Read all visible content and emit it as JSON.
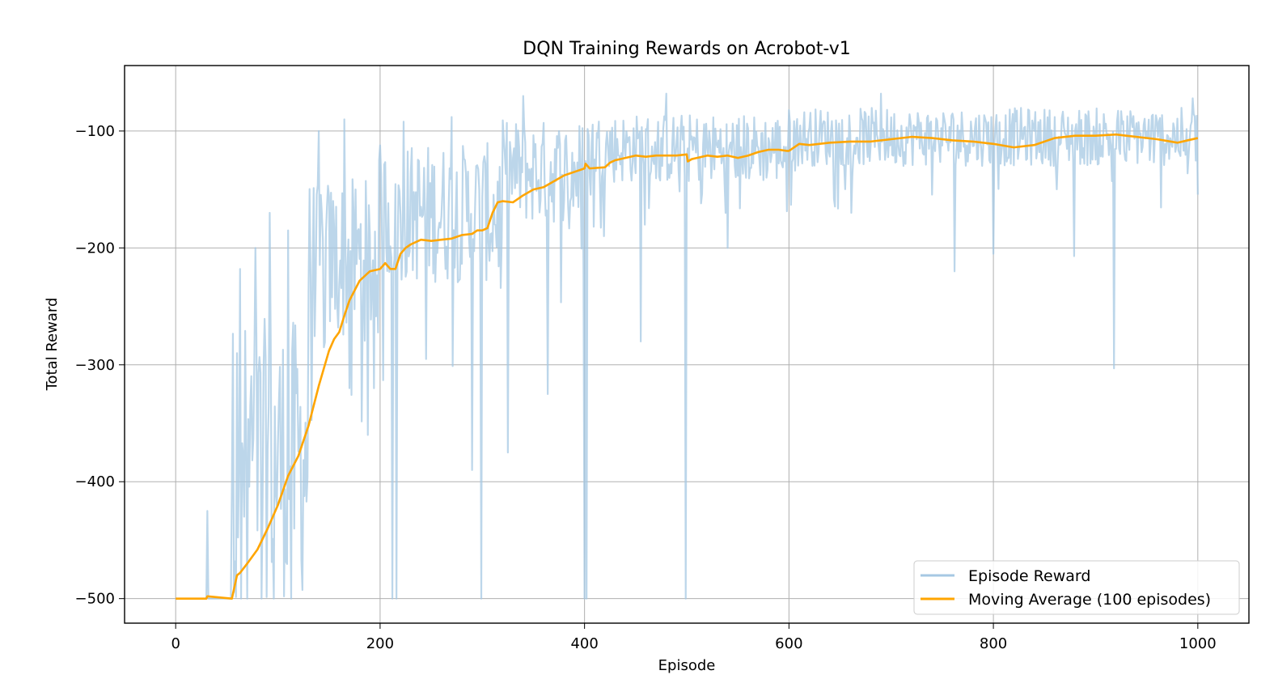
{
  "chart_data": {
    "type": "line",
    "title": "DQN Training Rewards on Acrobot-v1",
    "xlabel": "Episode",
    "ylabel": "Total Reward",
    "xlim": [
      -50,
      1050
    ],
    "ylim": [
      -521,
      -44
    ],
    "x_ticks": [
      0,
      200,
      400,
      600,
      800,
      1000
    ],
    "y_ticks": [
      -500,
      -400,
      -300,
      -200,
      -100
    ],
    "x_tick_labels": [
      "0",
      "200",
      "400",
      "600",
      "800",
      "1000"
    ],
    "y_tick_labels": [
      "−500",
      "−400",
      "−300",
      "−200",
      "−100"
    ],
    "grid": true,
    "legend_position": "lower-right",
    "series": [
      {
        "name": "Episode Reward",
        "color": "#a6c8e3",
        "opacity": 0.75,
        "mode": "approximate",
        "segments": [
          {
            "x_from": 0,
            "x_to": 55,
            "base": -500,
            "jitter": 0
          },
          {
            "x_from": 55,
            "x_to": 130,
            "base": -380,
            "jitter": 120
          },
          {
            "x_from": 130,
            "x_to": 200,
            "base": -210,
            "jitter": 70
          },
          {
            "x_from": 200,
            "x_to": 320,
            "base": -170,
            "jitter": 60
          },
          {
            "x_from": 320,
            "x_to": 400,
            "base": -135,
            "jitter": 45
          },
          {
            "x_from": 400,
            "x_to": 600,
            "base": -115,
            "jitter": 30
          },
          {
            "x_from": 600,
            "x_to": 1000,
            "base": -105,
            "jitter": 25
          }
        ],
        "points": [
          {
            "x": 31,
            "y": -425
          },
          {
            "x": 32,
            "y": -500
          },
          {
            "x": 60,
            "y": -290
          },
          {
            "x": 63,
            "y": -218
          },
          {
            "x": 70,
            "y": -500
          },
          {
            "x": 78,
            "y": -200
          },
          {
            "x": 92,
            "y": -170
          },
          {
            "x": 96,
            "y": -500
          },
          {
            "x": 110,
            "y": -185
          },
          {
            "x": 113,
            "y": -500
          },
          {
            "x": 140,
            "y": -100
          },
          {
            "x": 145,
            "y": -285
          },
          {
            "x": 165,
            "y": -90
          },
          {
            "x": 170,
            "y": -320
          },
          {
            "x": 188,
            "y": -360
          },
          {
            "x": 199,
            "y": -125
          },
          {
            "x": 212,
            "y": -500
          },
          {
            "x": 216,
            "y": -500
          },
          {
            "x": 223,
            "y": -92
          },
          {
            "x": 245,
            "y": -295
          },
          {
            "x": 270,
            "y": -88
          },
          {
            "x": 290,
            "y": -390
          },
          {
            "x": 299,
            "y": -500
          },
          {
            "x": 325,
            "y": -375
          },
          {
            "x": 340,
            "y": -70
          },
          {
            "x": 364,
            "y": -325
          },
          {
            "x": 400,
            "y": -500
          },
          {
            "x": 402,
            "y": -500
          },
          {
            "x": 455,
            "y": -280
          },
          {
            "x": 480,
            "y": -68
          },
          {
            "x": 499,
            "y": -500
          },
          {
            "x": 540,
            "y": -200
          },
          {
            "x": 661,
            "y": -170
          },
          {
            "x": 690,
            "y": -68
          },
          {
            "x": 762,
            "y": -220
          },
          {
            "x": 800,
            "y": -205
          },
          {
            "x": 879,
            "y": -207
          },
          {
            "x": 918,
            "y": -303
          },
          {
            "x": 995,
            "y": -72
          }
        ]
      },
      {
        "name": "Moving Average (100 episodes)",
        "color": "#ffa500",
        "x": [
          0,
          30,
          31,
          55,
          60,
          63,
          70,
          80,
          90,
          100,
          110,
          120,
          130,
          140,
          150,
          155,
          160,
          165,
          170,
          180,
          190,
          200,
          205,
          210,
          215,
          220,
          225,
          230,
          240,
          250,
          260,
          270,
          280,
          290,
          295,
          300,
          305,
          310,
          315,
          320,
          330,
          340,
          350,
          360,
          370,
          380,
          390,
          400,
          401,
          405,
          420,
          425,
          430,
          440,
          450,
          460,
          470,
          480,
          490,
          500,
          501,
          505,
          510,
          520,
          530,
          540,
          550,
          560,
          570,
          580,
          590,
          598,
          600,
          610,
          620,
          640,
          660,
          680,
          700,
          720,
          740,
          760,
          780,
          800,
          820,
          840,
          860,
          880,
          900,
          920,
          930,
          960,
          980,
          990,
          1000
        ],
        "y": [
          -500,
          -500,
          -498,
          -500,
          -480,
          -478,
          -470,
          -458,
          -440,
          -420,
          -395,
          -378,
          -352,
          -318,
          -288,
          -278,
          -272,
          -258,
          -245,
          -228,
          -220,
          -218,
          -213,
          -218,
          -218,
          -205,
          -200,
          -197,
          -193,
          -194,
          -193,
          -192,
          -189,
          -188,
          -185,
          -185,
          -183,
          -170,
          -161,
          -160,
          -161,
          -155,
          -150,
          -148,
          -143,
          -138,
          -135,
          -132,
          -128,
          -132,
          -131,
          -127,
          -125,
          -123,
          -121,
          -122,
          -121,
          -121,
          -121,
          -120,
          -126,
          -124,
          -123,
          -121,
          -122,
          -121,
          -123,
          -121,
          -118,
          -116,
          -116,
          -117,
          -117,
          -111,
          -112,
          -110,
          -109,
          -109,
          -107,
          -105,
          -106,
          -108,
          -109,
          -111,
          -114,
          -112,
          -106,
          -104,
          -104,
          -103,
          -104,
          -107,
          -110,
          -108,
          -106
        ]
      }
    ]
  }
}
